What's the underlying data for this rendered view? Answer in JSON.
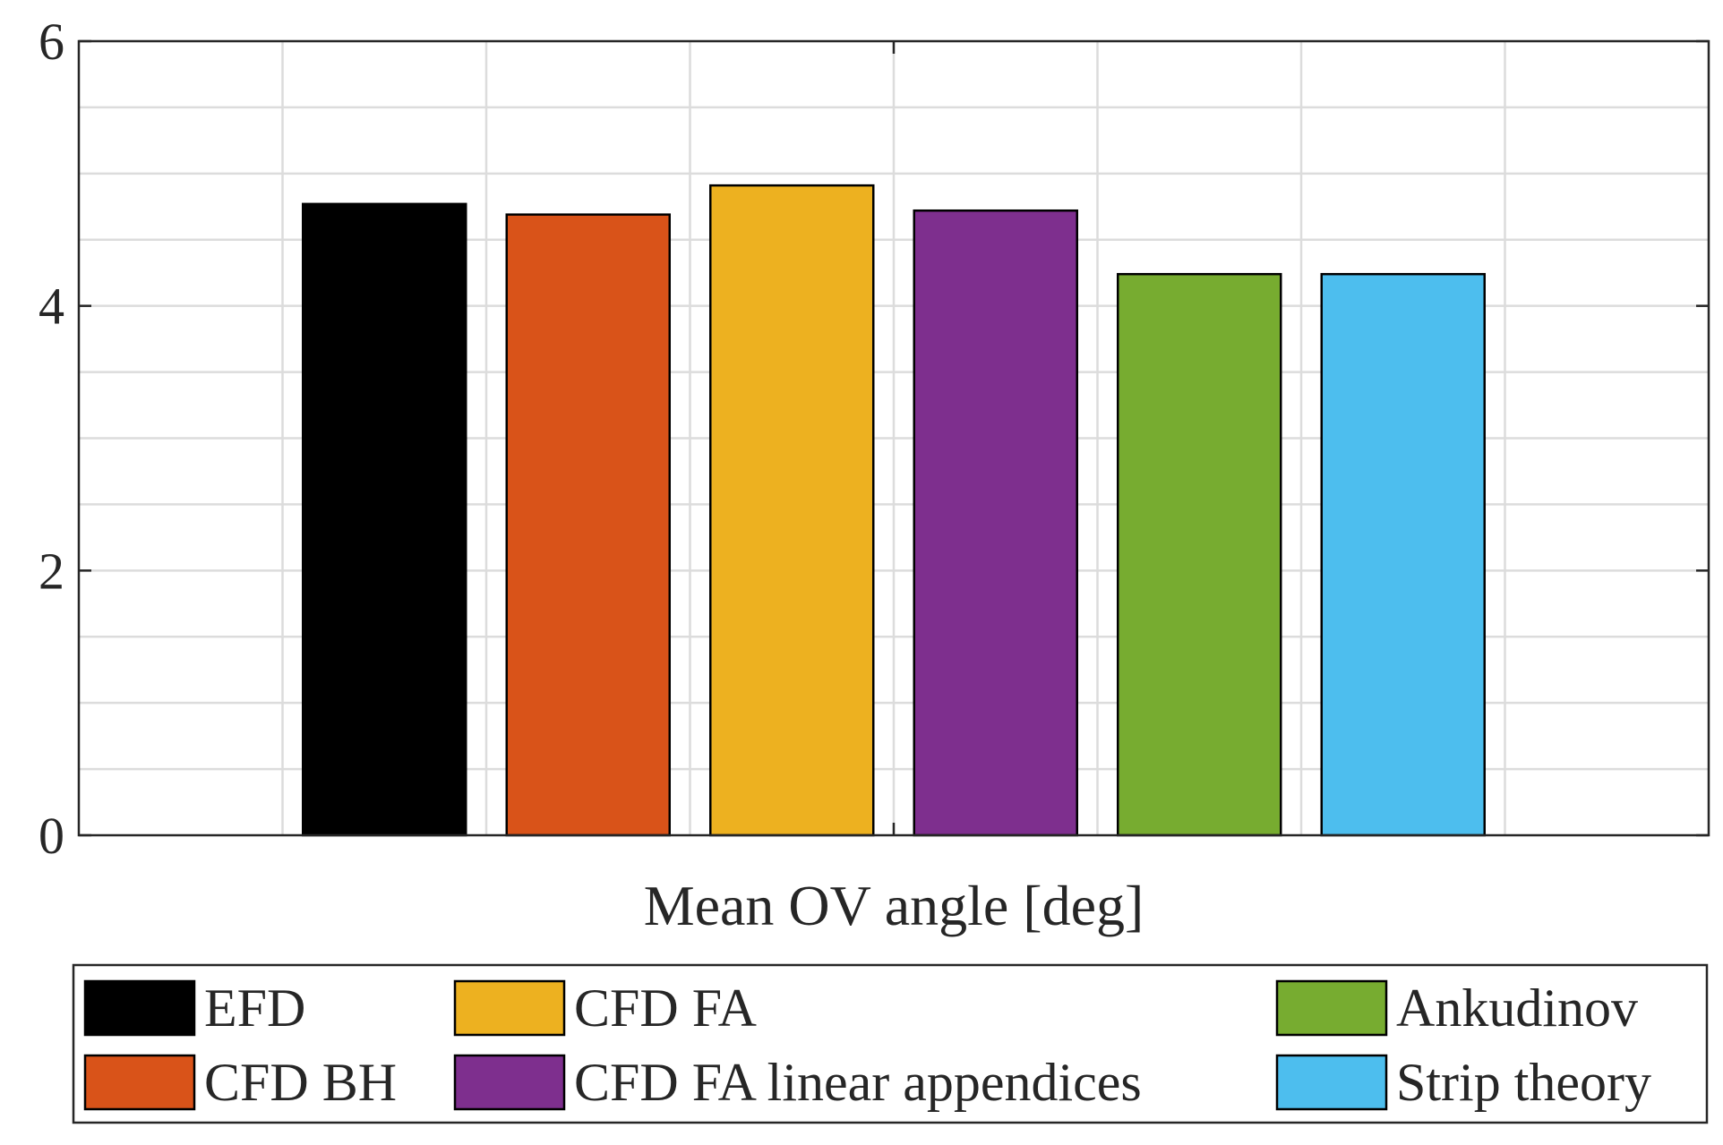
{
  "chart_data": {
    "type": "bar",
    "categories": [
      "Mean OV angle [deg]"
    ],
    "series": [
      {
        "name": "EFD",
        "values": [
          4.77
        ],
        "color": "#000000"
      },
      {
        "name": "CFD BH",
        "values": [
          4.69
        ],
        "color": "#D95319"
      },
      {
        "name": "CFD FA",
        "values": [
          4.91
        ],
        "color": "#EDB120"
      },
      {
        "name": "CFD FA linear appendices",
        "values": [
          4.72
        ],
        "color": "#7E2F8E"
      },
      {
        "name": "Ankudinov",
        "values": [
          4.24
        ],
        "color": "#77AC30"
      },
      {
        "name": "Strip theory",
        "values": [
          4.24
        ],
        "color": "#4DBEEE"
      }
    ],
    "title": "",
    "xlabel": "Mean OV angle [deg]",
    "ylabel": "",
    "ylim": [
      0,
      6
    ],
    "yticks": [
      0,
      2,
      4,
      6
    ],
    "grid": true,
    "minor_grid": true,
    "legend_position": "bottom"
  }
}
